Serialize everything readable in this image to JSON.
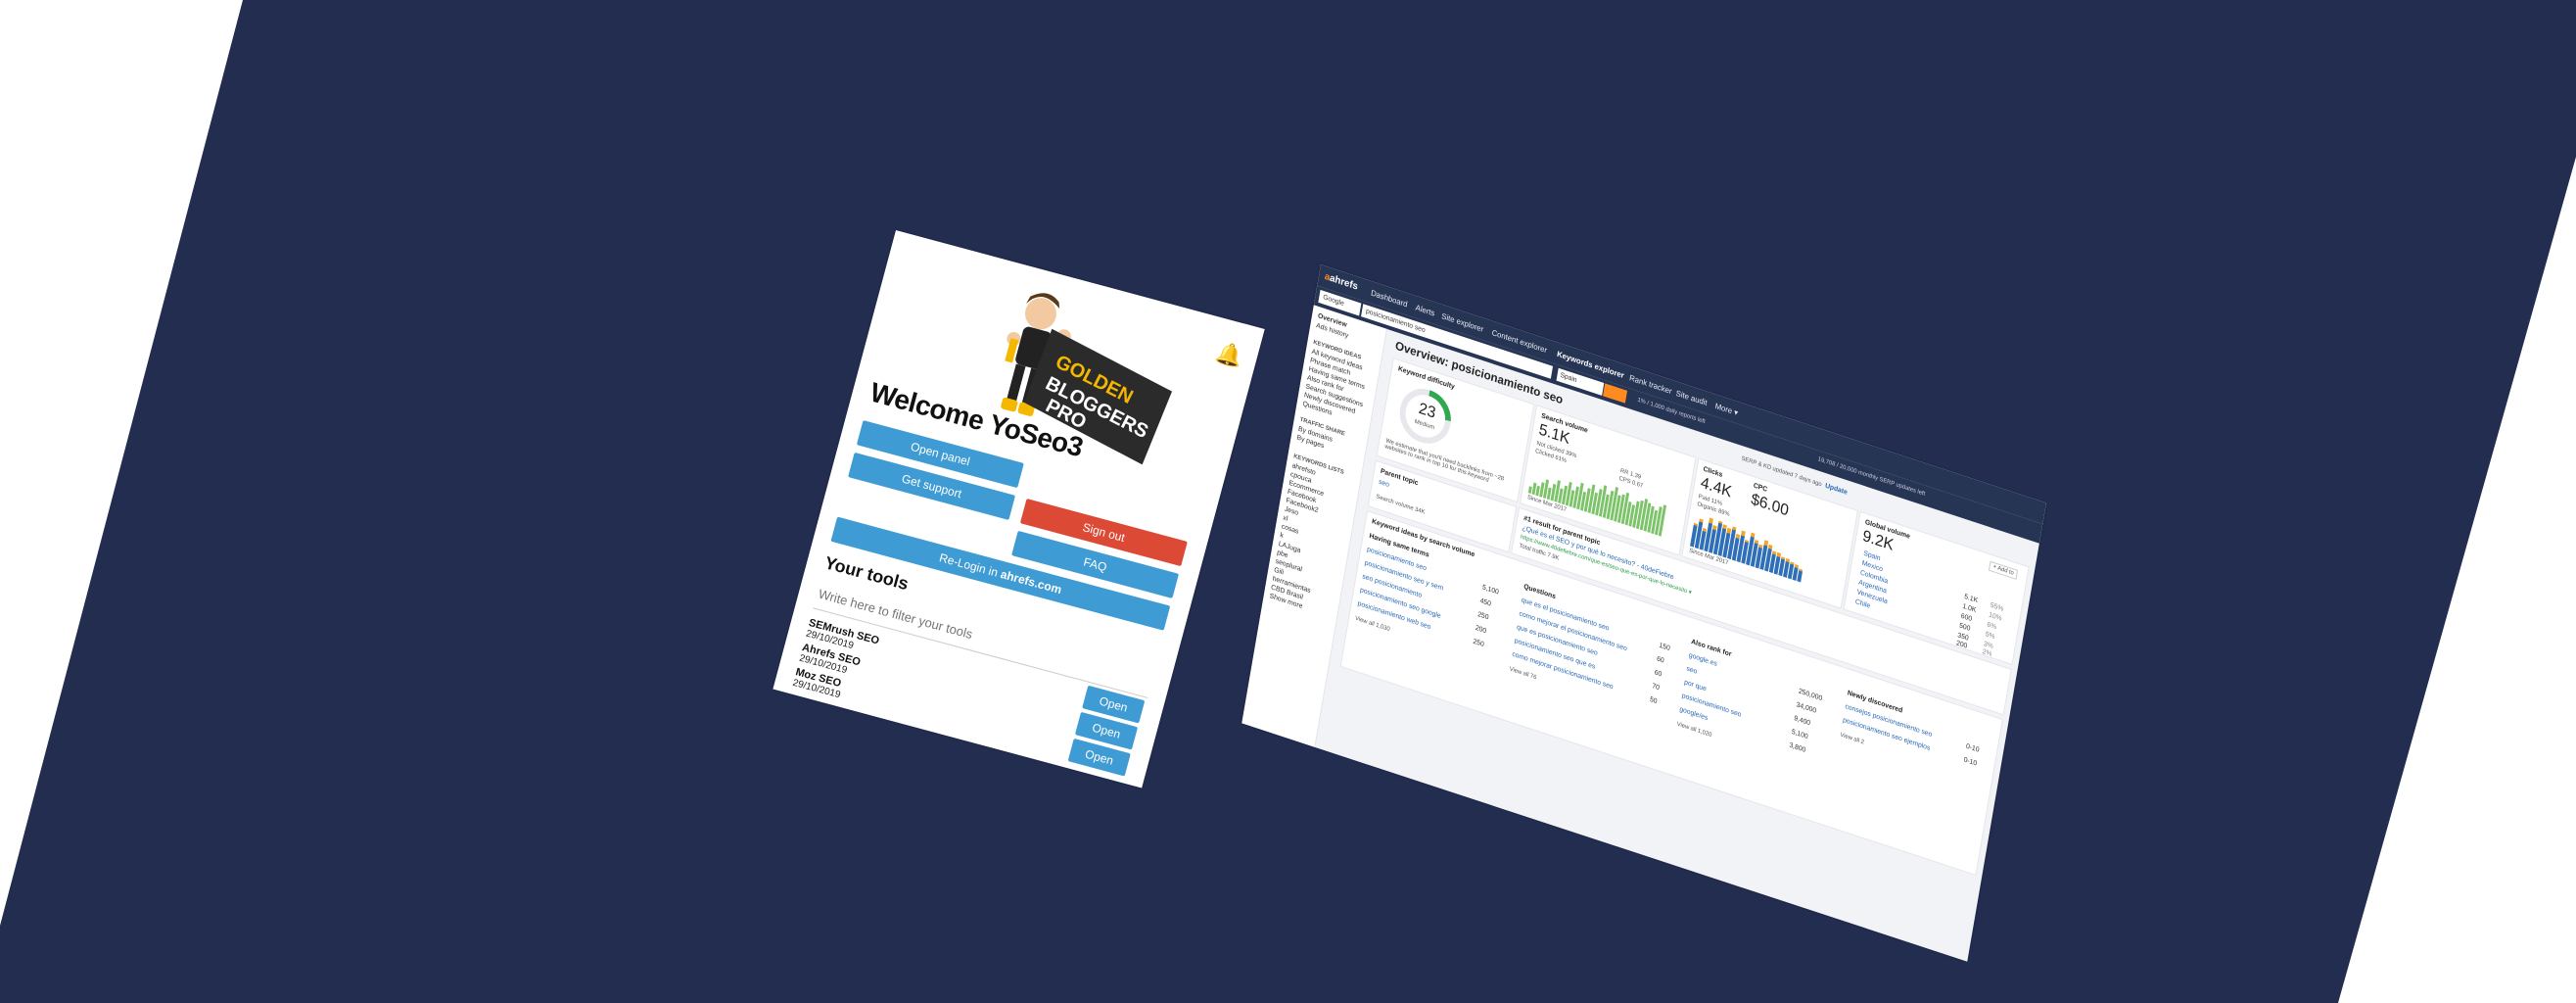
{
  "colors": {
    "background_navy": "#222d50",
    "blue_button": "#3f9bd3",
    "red_button": "#dc4a36",
    "ahrefs_bar": "#273555",
    "ahrefs_orange": "#ff8a1f"
  },
  "popup": {
    "logo_line1": "GOLDEN",
    "logo_line2": "BLOGGERS",
    "logo_line3": "PRO",
    "welcome": "Welcome YoSeo3",
    "open_panel": "Open panel",
    "get_support": "Get support",
    "sign_out": "Sign out",
    "faq": "FAQ",
    "relogin_prefix": "Re-Login in ",
    "relogin_site": "ahrefs.com",
    "tools_title": "Your tools",
    "filter_placeholder": "Write here to filter your tools",
    "tools": [
      {
        "name": "SEMrush SEO",
        "date": "29/10/2019",
        "button": "Open"
      },
      {
        "name": "Ahrefs SEO",
        "date": "29/10/2019",
        "button": "Open"
      },
      {
        "name": "Moz SEO",
        "date": "29/10/2019",
        "button": "Open"
      }
    ]
  },
  "ahrefs": {
    "brand": "ahrefs",
    "nav": [
      "Dashboard",
      "Alerts",
      "Site explorer",
      "Content explorer",
      "Keywords explorer",
      "Rank tracker",
      "Site audit",
      "More ▾"
    ],
    "search_engine": "Google",
    "query": "posicionamiento seo",
    "country": "Spain",
    "sidebar": {
      "items_top": [
        "Overview",
        "Ads history"
      ],
      "keyword_ideas_header": "KEYWORD IDEAS",
      "keyword_ideas": [
        "All keyword ideas",
        "Phrase match",
        "Having same terms",
        "Also rank for",
        "Search suggestions",
        "Newly discovered",
        "Questions"
      ],
      "traffic_header": "TRAFFIC SHARE",
      "traffic": [
        "By domains",
        "By pages"
      ],
      "lists_header": "KEYWORDS LISTS",
      "lists": [
        "ahrefsto",
        "cpouca",
        "Ecommerce",
        "Facebook",
        "Facebook2",
        "Jeso",
        "xl",
        "cosas",
        "k",
        "LAJuga",
        "pbe",
        "seoplural",
        "Gili",
        "herramientas",
        "CBD Brasil",
        "Show more"
      ]
    },
    "page_title": "Overview: posicionamiento seo",
    "keyword_difficulty": {
      "title": "Keyword difficulty",
      "value": "23",
      "label": "Medium",
      "level_pct": 23,
      "note": "We estimate that you'll need backlinks from ~28 websites to rank in top 10 for this keyword"
    },
    "search_volume": {
      "title": "Search volume",
      "value": "5.1K",
      "not_clicked": "Not clicked 39%",
      "clicked": "Clicked 61%",
      "rr": "RR 1.39",
      "cps": "CPS 0.67",
      "since": "Since Mar 2017"
    },
    "clicks": {
      "title": "Clicks",
      "value": "4.4K",
      "cpc_title": "CPC",
      "cpc_value": "$6.00",
      "paid": "Paid 11%",
      "organic": "Organic 89%",
      "since": "Since Mar 2017"
    },
    "global_volume": {
      "title": "Global volume",
      "value": "9.2K",
      "add_to": "+ Add to",
      "countries": [
        {
          "name": "Spain",
          "value": "",
          "pct": ""
        },
        {
          "name": "Mexico",
          "value": "5.1K",
          "pct": "55%"
        },
        {
          "name": "Colombia",
          "value": "1.0K",
          "pct": "10%"
        },
        {
          "name": "Argentina",
          "value": "600",
          "pct": "6%"
        },
        {
          "name": "Venezuela",
          "value": "500",
          "pct": "5%"
        },
        {
          "name": "Chile",
          "value": "350",
          "pct": "3%"
        },
        {
          "name": "",
          "value": "200",
          "pct": "2%"
        }
      ]
    },
    "top_notice": "SERP & KD updated 7 days ago",
    "update_label": "Update",
    "credit_info": "1% / 1,000 daily reports left",
    "credit_info2": "19,708 / 20,000 monthly SERP updates left",
    "parent_topic": {
      "title": "Parent topic",
      "keyword": "seo",
      "search_volume": "Search volume 34K"
    },
    "parent_result": {
      "title": "#1 result for parent topic",
      "link_title": "¿Qué es el SEO y por qué lo necesito? - 40deFiebre",
      "url": "https://www.40defiebre.com/que-es/seo-que-es-por-que-lo-necesito ▾",
      "traffic": "Total traffic 7.9K"
    },
    "ideas": {
      "title": "Keyword ideas by search volume",
      "having_same_terms": {
        "title": "Having same terms",
        "rows": [
          {
            "k": "posicionamiento seo",
            "v": "5,100"
          },
          {
            "k": "posicionamiento seo y sem",
            "v": "450"
          },
          {
            "k": "seo posicionamiento",
            "v": "250"
          },
          {
            "k": "posicionamiento seo google",
            "v": "200"
          },
          {
            "k": "posicionamiento web seo",
            "v": "250"
          }
        ],
        "view_all": "View all 1,030"
      },
      "questions": {
        "title": "Questions",
        "rows": [
          {
            "k": "que es el posicionamiento seo",
            "v": "150"
          },
          {
            "k": "como mejorar el posicionamiento seo",
            "v": "60"
          },
          {
            "k": "que es posicionamiento seo",
            "v": "60"
          },
          {
            "k": "posicionamiento seo que es",
            "v": "70"
          },
          {
            "k": "como mejorar posicionamiento seo",
            "v": "50"
          }
        ],
        "view_all": "View all 76"
      },
      "also_rank_for": {
        "title": "Also rank for",
        "rows": [
          {
            "k": "google.es",
            "v": "250,000"
          },
          {
            "k": "seo",
            "v": "34,000"
          },
          {
            "k": "por que",
            "v": "9,400"
          },
          {
            "k": "posicionamiento seo",
            "v": "5,100"
          },
          {
            "k": "google/es",
            "v": "3,800"
          }
        ],
        "view_all": "View all 1,020"
      },
      "newly_discovered": {
        "title": "Newly discovered",
        "rows": [
          {
            "k": "consejos posicionamiento seo",
            "v": "0-10"
          },
          {
            "k": "posicionamiento seo ejemplos",
            "v": "0-10"
          }
        ],
        "view_all": "View all 2"
      }
    },
    "search_volume_bars": [
      3,
      5,
      4,
      6,
      8,
      5,
      7,
      9,
      6,
      8,
      10,
      7,
      9,
      11,
      8,
      10,
      12,
      9,
      11,
      13,
      10,
      12,
      14,
      11,
      12,
      13,
      10,
      9,
      11,
      12,
      13,
      12,
      11,
      10,
      12,
      13
    ],
    "clicks_bars": [
      {
        "paid": 2,
        "organic": 18
      },
      {
        "paid": 3,
        "organic": 22
      },
      {
        "paid": 2,
        "organic": 16
      },
      {
        "paid": 4,
        "organic": 24
      },
      {
        "paid": 3,
        "organic": 20
      },
      {
        "paid": 2,
        "organic": 26
      },
      {
        "paid": 3,
        "organic": 23
      },
      {
        "paid": 4,
        "organic": 21
      },
      {
        "paid": 2,
        "organic": 25
      },
      {
        "paid": 3,
        "organic": 19
      },
      {
        "paid": 4,
        "organic": 22
      },
      {
        "paid": 2,
        "organic": 18
      },
      {
        "paid": 3,
        "organic": 24
      },
      {
        "paid": 2,
        "organic": 20
      },
      {
        "paid": 3,
        "organic": 17
      },
      {
        "paid": 4,
        "organic": 21
      },
      {
        "paid": 3,
        "organic": 19
      },
      {
        "paid": 2,
        "organic": 16
      },
      {
        "paid": 3,
        "organic": 15
      },
      {
        "paid": 2,
        "organic": 14
      },
      {
        "paid": 3,
        "organic": 13
      },
      {
        "paid": 2,
        "organic": 12
      },
      {
        "paid": 2,
        "organic": 11
      },
      {
        "paid": 2,
        "organic": 9
      }
    ]
  }
}
